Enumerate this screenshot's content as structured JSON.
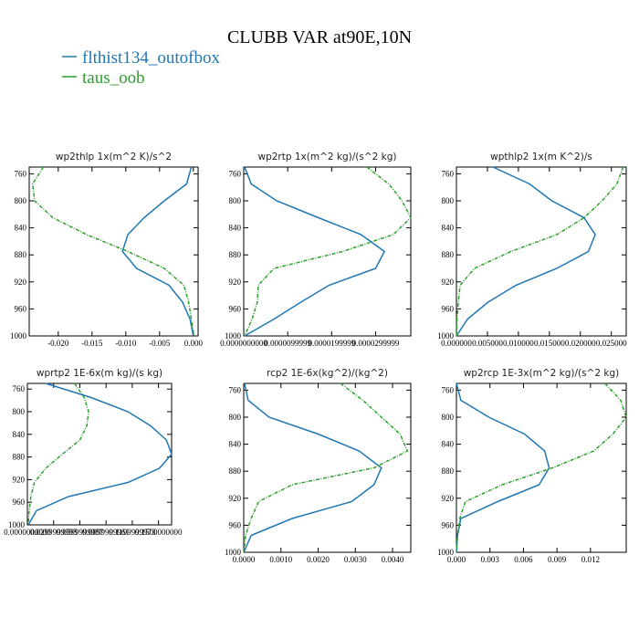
{
  "title": "CLUBB VAR at90E,10N",
  "legend": [
    {
      "name": "flthist134_outofbox",
      "color": "#1f77b4"
    },
    {
      "name": "taus_oob",
      "color": "#2ca02c"
    }
  ],
  "chart_data": [
    {
      "type": "line",
      "title": "wp2thlp  1x(m^2 K)/s^2",
      "y": [
        750,
        775,
        800,
        825,
        850,
        875,
        900,
        925,
        950,
        975,
        1000
      ],
      "ylim": [
        1000,
        750
      ],
      "yticks": [
        760,
        800,
        840,
        880,
        920,
        960,
        1000
      ],
      "xlim": [
        -0.0243,
        0.0007
      ],
      "xticks": [
        {
          "value": -0.02,
          "label": "-0.020"
        },
        -0.015,
        {
          "value": -0.01,
          "label": "-0.010"
        },
        -0.005,
        {
          "value": 0,
          "label": "0.000"
        }
      ],
      "series": [
        {
          "values": [
            -0.0003,
            -0.001,
            -0.0043,
            -0.0073,
            -0.0097,
            -0.0105,
            -0.0084,
            -0.0036,
            -0.0016,
            -0.0005,
            0
          ]
        },
        {
          "values": [
            -0.0222,
            -0.0238,
            -0.0235,
            -0.0208,
            -0.0158,
            -0.0097,
            -0.0043,
            -0.0014,
            -0.0007,
            -0.0003,
            0.0001
          ]
        }
      ]
    },
    {
      "type": "line",
      "title": "wp2rtp  1x(m^2 kg)/(s^2 kg)",
      "y": [
        750,
        775,
        800,
        825,
        850,
        875,
        900,
        925,
        950,
        975,
        1000
      ],
      "ylim": [
        1000,
        750
      ],
      "yticks": [
        760,
        800,
        840,
        880,
        920,
        960,
        1000
      ],
      "xlim": [
        0,
        3.8e-05
      ],
      "xticks": [
        {
          "value": 0,
          "label": "0.0000000000"
        },
        {
          "value": 1e-05,
          "label": "0.0000099999"
        },
        {
          "value": 2e-05,
          "label": "0.0000199999"
        },
        {
          "value": 3e-05,
          "label": "0.0000299999"
        }
      ],
      "series": [
        {
          "values": [
            2e-07,
            1.7e-06,
            7.5e-06,
            1.7e-05,
            2.67e-05,
            3.2e-05,
            3e-05,
            1.94e-05,
            1.3e-05,
            6.9e-06,
            2e-07
          ]
        },
        {
          "values": [
            2.8e-05,
            3.3e-05,
            3.6e-05,
            3.8e-05,
            3.4e-05,
            2.25e-05,
            6.9e-06,
            3.3e-06,
            3.1e-06,
            1.9e-06,
            2e-07
          ]
        }
      ]
    },
    {
      "type": "line",
      "title": "wpthlp2  1x(m K^2)/s",
      "y": [
        750,
        775,
        800,
        825,
        850,
        875,
        900,
        925,
        950,
        975,
        1000
      ],
      "ylim": [
        1000,
        750
      ],
      "yticks": [
        760,
        800,
        840,
        880,
        920,
        960,
        1000
      ],
      "xlim": [
        0,
        0.0274
      ],
      "xticks": [
        {
          "value": 0,
          "label": "0.000000"
        },
        {
          "value": 0.005,
          "label": "0.005000"
        },
        {
          "value": 0.01,
          "label": "0.010000"
        },
        {
          "value": 0.015,
          "label": "0.015000"
        },
        {
          "value": 0.02,
          "label": "0.020000"
        },
        {
          "value": 0.025,
          "label": "0.025000"
        }
      ],
      "series": [
        {
          "values": [
            0.0059,
            0.0118,
            0.0154,
            0.0206,
            0.0224,
            0.0213,
            0.0162,
            0.0096,
            0.0051,
            0.0018,
            0
          ]
        },
        {
          "values": [
            0.0269,
            0.0259,
            0.0235,
            0.0206,
            0.0162,
            0.0088,
            0.0029,
            0.0006,
            0.0003,
            0.0001,
            0
          ]
        }
      ]
    },
    {
      "type": "line",
      "title": "wprtp2  1E-6x(m kg)/(s kg)",
      "y": [
        750,
        775,
        800,
        825,
        850,
        875,
        900,
        925,
        950,
        975,
        1000
      ],
      "ylim": [
        1000,
        750
      ],
      "yticks": [
        760,
        800,
        840,
        880,
        920,
        960,
        1000
      ],
      "xlim": [
        0,
        0.165
      ],
      "xticks": [
        {
          "value": 0,
          "label": "0.0000000000"
        },
        {
          "value": 0.03,
          "label": "0.0299999993"
        },
        {
          "value": 0.06,
          "label": "0.0599999987"
        },
        {
          "value": 0.09,
          "label": "0.0899999961"
        },
        {
          "value": 0.12,
          "label": "0.1199999973"
        },
        {
          "value": 0.15,
          "label": "0.1500000000"
        }
      ],
      "series": [
        {
          "values": [
            0.0209,
            0.073,
            0.115,
            0.141,
            0.159,
            0.165,
            0.151,
            0.115,
            0.047,
            0.0104,
            0.001
          ]
        },
        {
          "values": [
            0.054,
            0.065,
            0.07,
            0.068,
            0.06,
            0.04,
            0.021,
            0.008,
            0.004,
            0.002,
            0.001
          ]
        }
      ]
    },
    {
      "type": "line",
      "title": "rcp2  1E-6x(kg^2)/(kg^2)",
      "y": [
        750,
        775,
        800,
        825,
        850,
        875,
        900,
        925,
        950,
        975,
        1000
      ],
      "ylim": [
        1000,
        750
      ],
      "yticks": [
        760,
        800,
        840,
        880,
        920,
        960,
        1000
      ],
      "xlim": [
        0,
        0.00449
      ],
      "xticks": [
        {
          "value": 0,
          "label": "0.0000"
        },
        {
          "value": 0.001,
          "label": "0.0010"
        },
        {
          "value": 0.002,
          "label": "0.0020"
        },
        {
          "value": 0.003,
          "label": "0.0030"
        },
        {
          "value": 0.004,
          "label": "0.0040"
        }
      ],
      "series": [
        {
          "values": [
            2e-05,
            0.00012,
            0.00068,
            0.002,
            0.0031,
            0.0037,
            0.0035,
            0.0029,
            0.0013,
            0.0002,
            0
          ]
        },
        {
          "values": [
            0.0026,
            0.0032,
            0.0037,
            0.0042,
            0.0044,
            0.0035,
            0.0013,
            0.0004,
            0.0002,
            5e-05,
            0
          ]
        }
      ]
    },
    {
      "type": "line",
      "title": "wp2rcp  1E-3x(m^2 kg)/(s^2 kg)",
      "y": [
        750,
        775,
        800,
        825,
        850,
        875,
        900,
        925,
        950,
        975,
        1000
      ],
      "ylim": [
        1000,
        750
      ],
      "yticks": [
        760,
        800,
        840,
        880,
        920,
        960,
        1000
      ],
      "xlim": [
        0,
        0.0152
      ],
      "xticks": [
        {
          "value": 0,
          "label": "0.000"
        },
        0.003,
        0.006,
        0.009,
        0.012
      ],
      "series": [
        {
          "values": [
            0,
            0.0004,
            0.0029,
            0.0061,
            0.0079,
            0.0083,
            0.0074,
            0.0037,
            0.0004,
            0.0001,
            0
          ]
        },
        {
          "values": [
            0.0133,
            0.0147,
            0.0152,
            0.014,
            0.0123,
            0.0086,
            0.0041,
            0.0008,
            0.0003,
            0.0001,
            0
          ]
        }
      ]
    }
  ]
}
